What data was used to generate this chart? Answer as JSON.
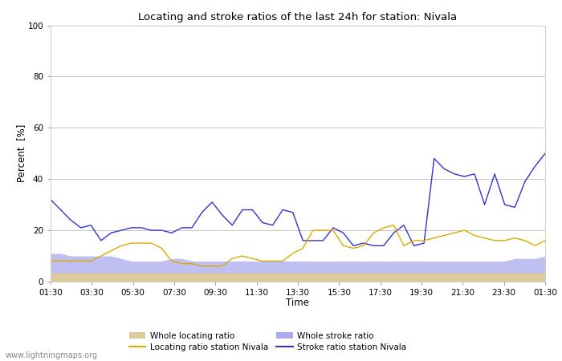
{
  "title": "Locating and stroke ratios of the last 24h for station: Nivala",
  "xlabel": "Time",
  "ylabel": "Percent  [%]",
  "watermark": "www.lightningmaps.org",
  "x_labels": [
    "01:30",
    "03:30",
    "05:30",
    "07:30",
    "09:30",
    "11:30",
    "13:30",
    "15:30",
    "17:30",
    "19:30",
    "21:30",
    "23:30",
    "01:30"
  ],
  "ylim": [
    0,
    100
  ],
  "yticks": [
    0,
    20,
    40,
    60,
    80,
    100
  ],
  "stroke_ratio_station": [
    32,
    28,
    24,
    21,
    22,
    16,
    19,
    20,
    21,
    21,
    20,
    20,
    19,
    21,
    21,
    27,
    31,
    26,
    22,
    28,
    28,
    23,
    22,
    28,
    27,
    16,
    16,
    16,
    21,
    19,
    14,
    15,
    14,
    14,
    19,
    22,
    14,
    15,
    48,
    44,
    42,
    41,
    42,
    30,
    42,
    30,
    29,
    39,
    45,
    50
  ],
  "locating_ratio_station": [
    8,
    8,
    8,
    8,
    8,
    10,
    12,
    14,
    15,
    15,
    15,
    13,
    8,
    7,
    7,
    6,
    6,
    6,
    9,
    10,
    9,
    8,
    8,
    8,
    11,
    13,
    20,
    20,
    20,
    14,
    13,
    14,
    19,
    21,
    22,
    14,
    16,
    16,
    17,
    18,
    19,
    20,
    18,
    17,
    16,
    16,
    17,
    16,
    14,
    16
  ],
  "whole_stroke_ratio": [
    11,
    11,
    10,
    10,
    10,
    10,
    10,
    9,
    8,
    8,
    8,
    8,
    9,
    9,
    8,
    8,
    8,
    8,
    8,
    8,
    8,
    8,
    8,
    8,
    8,
    8,
    8,
    8,
    8,
    8,
    8,
    8,
    8,
    8,
    8,
    8,
    8,
    8,
    8,
    8,
    8,
    8,
    8,
    8,
    8,
    8,
    9,
    9,
    9,
    10
  ],
  "whole_locating_ratio": [
    3,
    3,
    3,
    3,
    3,
    3,
    3,
    3,
    3,
    3,
    3,
    3,
    3,
    3,
    3,
    3,
    3,
    3,
    3,
    3,
    3,
    3,
    3,
    3,
    3,
    3,
    3,
    3,
    3,
    3,
    3,
    3,
    3,
    3,
    3,
    3,
    3,
    3,
    3,
    3,
    3,
    3,
    3,
    3,
    3,
    3,
    3,
    3,
    3,
    3
  ],
  "color_stroke_station": "#3333cc",
  "color_locating_station": "#ddaa00",
  "color_whole_stroke": "#aaaaee",
  "color_whole_locating": "#ddcc99",
  "bg_color": "#ffffff",
  "grid_color": "#bbbbbb",
  "legend_labels": [
    "Whole locating ratio",
    "Locating ratio station Nivala",
    "Whole stroke ratio",
    "Stroke ratio station Nivala"
  ]
}
